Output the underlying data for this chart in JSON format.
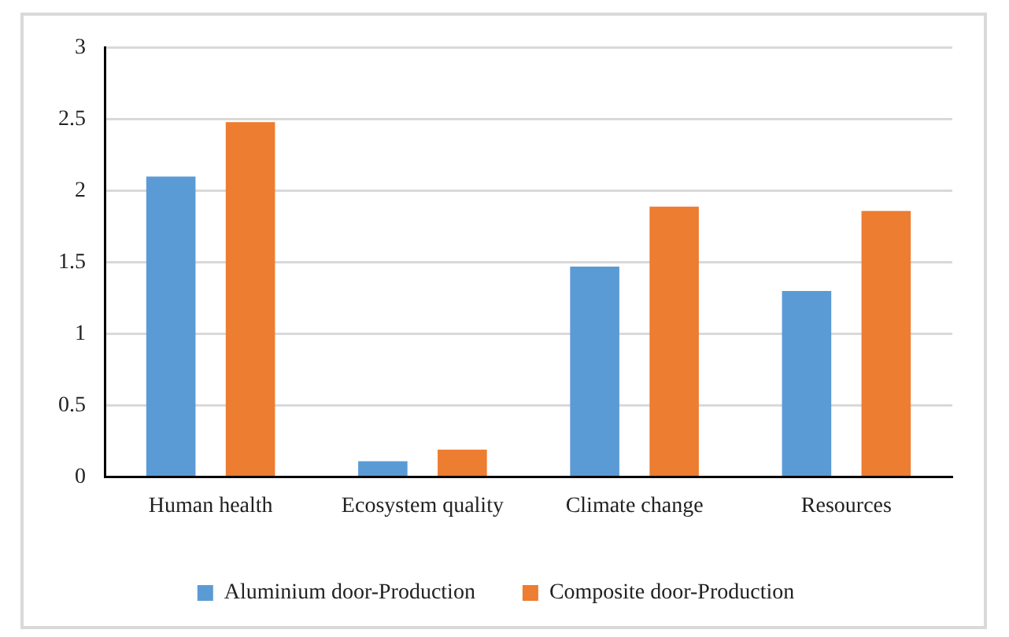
{
  "chart_data": {
    "type": "bar",
    "categories": [
      "Human health",
      "Ecosystem quality",
      "Climate change",
      "Resources"
    ],
    "series": [
      {
        "name": "Aluminium door-Production",
        "color": "#5b9bd5",
        "values": [
          2.1,
          0.11,
          1.47,
          1.3
        ]
      },
      {
        "name": "Composite door-Production",
        "color": "#ed7d31",
        "values": [
          2.48,
          0.19,
          1.89,
          1.86
        ]
      }
    ],
    "ylim": [
      0,
      3
    ],
    "yticks": [
      0,
      0.5,
      1,
      1.5,
      2,
      2.5,
      3
    ],
    "grid": "y",
    "legend": "bottom"
  }
}
